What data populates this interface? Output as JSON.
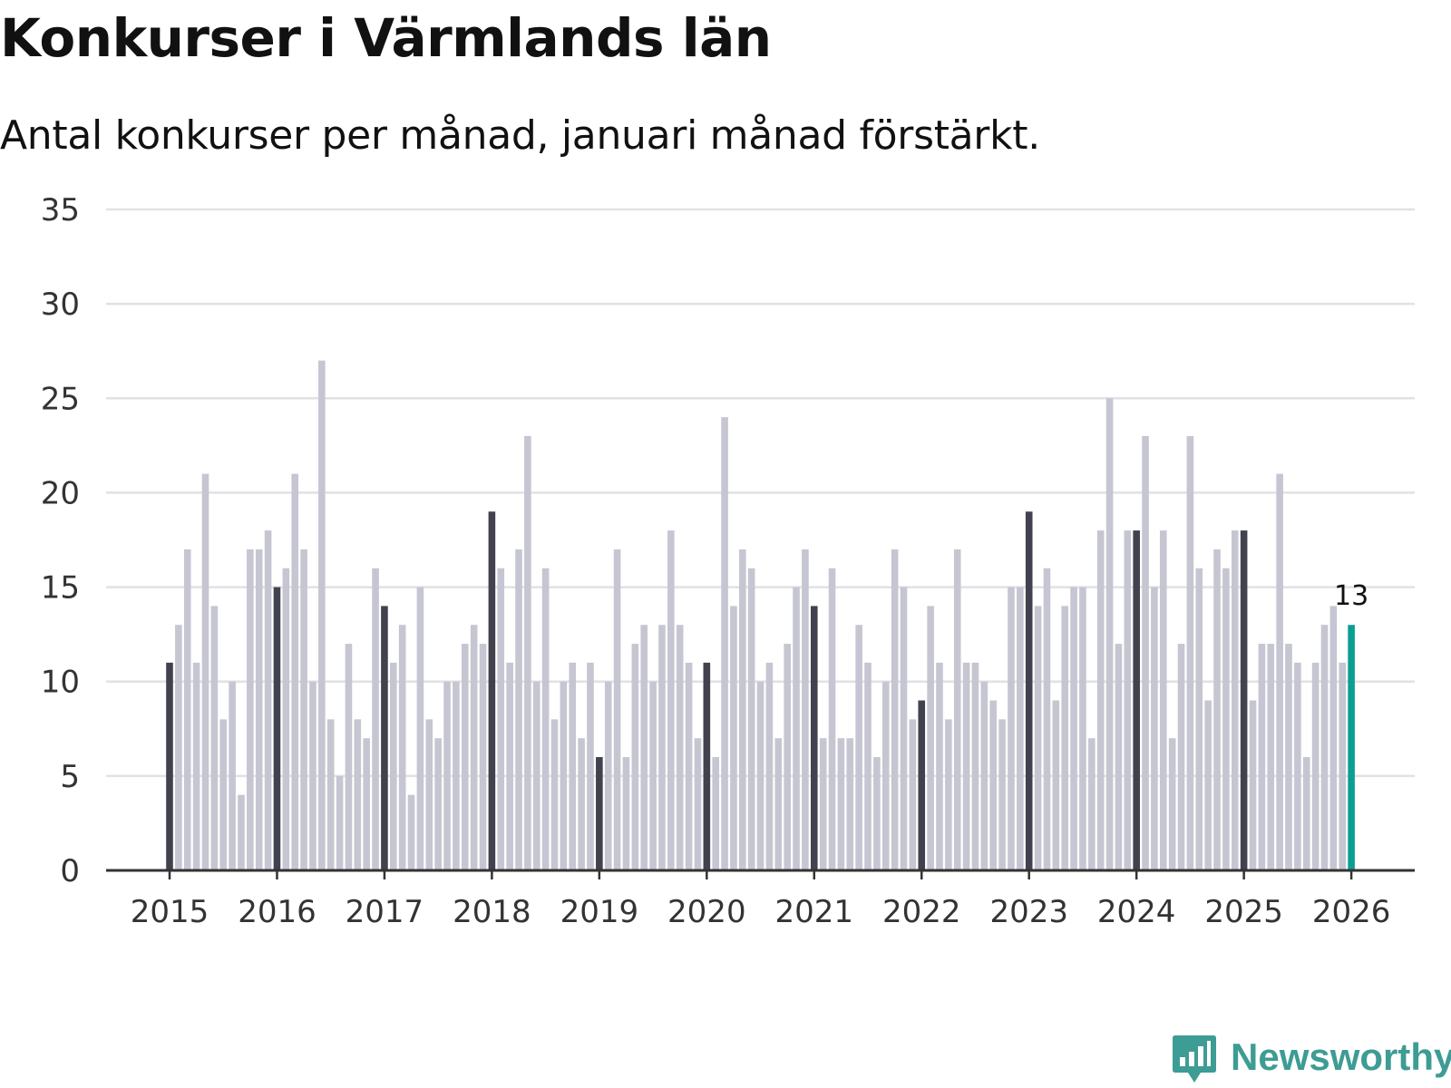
{
  "title": "Konkurser i Värmlands län",
  "subtitle": "Antal konkurser per månad, januari månad förstärkt.",
  "chart_data": {
    "type": "bar",
    "title": "Konkurser i Värmlands län",
    "subtitle": "Antal konkurser per månad, januari månad förstärkt.",
    "xlabel": "",
    "ylabel": "",
    "ylim": [
      0,
      35
    ],
    "yticks": [
      "0",
      "5",
      "10",
      "15",
      "20",
      "25",
      "30",
      "35"
    ],
    "grid": true,
    "x_tick_labels": [
      "2015",
      "2016",
      "2017",
      "2018",
      "2019",
      "2020",
      "2021",
      "2022",
      "2023",
      "2024",
      "2025",
      "2026"
    ],
    "series": [
      {
        "name": "Konkurser per månad",
        "start": "2015-01",
        "values": [
          11,
          13,
          17,
          11,
          21,
          14,
          8,
          10,
          4,
          17,
          17,
          18,
          15,
          16,
          21,
          17,
          10,
          27,
          8,
          5,
          12,
          8,
          7,
          16,
          14,
          11,
          13,
          4,
          15,
          8,
          7,
          10,
          10,
          12,
          13,
          12,
          19,
          16,
          11,
          17,
          23,
          10,
          16,
          8,
          10,
          11,
          7,
          11,
          6,
          10,
          17,
          6,
          12,
          13,
          10,
          13,
          18,
          13,
          11,
          7,
          11,
          6,
          24,
          14,
          17,
          16,
          10,
          11,
          7,
          12,
          15,
          17,
          14,
          7,
          16,
          7,
          7,
          13,
          11,
          6,
          10,
          17,
          15,
          8,
          9,
          14,
          11,
          8,
          17,
          11,
          11,
          10,
          9,
          8,
          15,
          15,
          19,
          14,
          16,
          9,
          14,
          15,
          15,
          7,
          18,
          25,
          12,
          18,
          18,
          23,
          15,
          18,
          7,
          12,
          23,
          16,
          9,
          17,
          16,
          18,
          18,
          9,
          12,
          12,
          21,
          12,
          11,
          6,
          11,
          13,
          14,
          11,
          13
        ]
      }
    ],
    "highlight": "januari",
    "last_value_label": "13",
    "colors": {
      "regular": "#c6c6d2",
      "january": "#42424f",
      "latest": "#0c9e92",
      "grid": "#e1e1e6",
      "axis": "#333333"
    }
  },
  "brand": {
    "name": "Newsworthy",
    "color": "#3d9c94"
  }
}
